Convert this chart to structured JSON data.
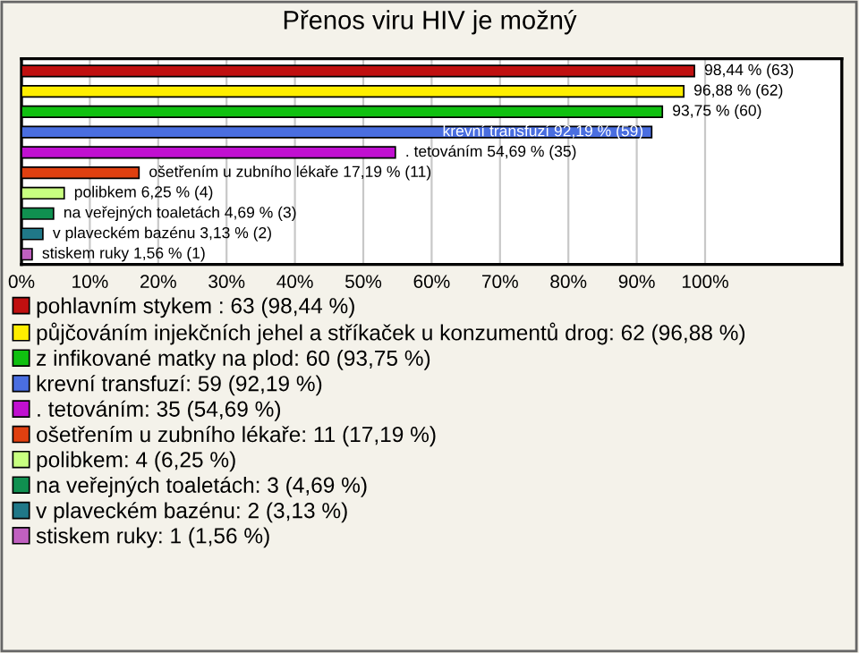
{
  "chart_data": {
    "type": "bar",
    "orientation": "horizontal",
    "title": "Přenos viru HIV je možný",
    "categories": [
      null,
      null,
      null,
      null,
      null,
      null,
      null,
      null,
      null,
      null
    ],
    "series": [
      {
        "name": "pohlavním stykem : 63 (98,44 %)",
        "color": "#c01010",
        "values": [
          98.44,
          null,
          null,
          null,
          null,
          null,
          null,
          null,
          null,
          null
        ],
        "value_labels": [
          "98,44 % (63)",
          null,
          null,
          null,
          null,
          null,
          null,
          null,
          null,
          null
        ]
      },
      {
        "name": "půjčováním injekčních jehel a stříkaček u konzumentů drog: 62 (96,88 %)",
        "color": "#ffee00",
        "values": [
          null,
          96.88,
          null,
          null,
          null,
          null,
          null,
          null,
          null,
          null
        ],
        "value_labels": [
          null,
          "96,88 % (62)",
          null,
          null,
          null,
          null,
          null,
          null,
          null,
          null
        ]
      },
      {
        "name": "z infikované matky na plod: 60 (93,75 %)",
        "color": "#10c010",
        "values": [
          null,
          null,
          93.75,
          null,
          null,
          null,
          null,
          null,
          null,
          null
        ],
        "value_labels": [
          null,
          null,
          "93,75 % (60)",
          null,
          null,
          null,
          null,
          null,
          null,
          null
        ]
      },
      {
        "name": "krevní transfuzí: 59 (92,19 %)",
        "color": "#4a6ee0",
        "values": [
          null,
          null,
          null,
          92.19,
          null,
          null,
          null,
          null,
          null,
          null
        ],
        "value_labels": [
          null,
          null,
          null,
          "krevní transfuzí 92,19 % (59)",
          null,
          null,
          null,
          null,
          null,
          null
        ]
      },
      {
        "name": ". tetováním: 35 (54,69 %)",
        "color": "#c010d0",
        "values": [
          null,
          null,
          null,
          null,
          54.69,
          null,
          null,
          null,
          null,
          null
        ],
        "value_labels": [
          null,
          null,
          null,
          null,
          ". tetováním 54,69 % (35)",
          null,
          null,
          null,
          null,
          null
        ]
      },
      {
        "name": "ošetřením u zubního lékaře: 11 (17,19 %)",
        "color": "#e04010",
        "values": [
          null,
          null,
          null,
          null,
          null,
          17.19,
          null,
          null,
          null,
          null
        ],
        "value_labels": [
          null,
          null,
          null,
          null,
          null,
          "ošetřením u zubního lékaře 17,19 % (11)",
          null,
          null,
          null,
          null
        ]
      },
      {
        "name": "polibkem: 4 (6,25 %)",
        "color": "#c8ff80",
        "values": [
          null,
          null,
          null,
          null,
          null,
          null,
          6.25,
          null,
          null,
          null
        ],
        "value_labels": [
          null,
          null,
          null,
          null,
          null,
          null,
          "polibkem 6,25 % (4)",
          null,
          null,
          null
        ]
      },
      {
        "name": "na veřejných toaletách: 3 (4,69 %)",
        "color": "#109050",
        "values": [
          null,
          null,
          null,
          null,
          null,
          null,
          null,
          4.69,
          null,
          null
        ],
        "value_labels": [
          null,
          null,
          null,
          null,
          null,
          null,
          null,
          "na veřejných toaletách 4,69 % (3)",
          null,
          null
        ]
      },
      {
        "name": "v plaveckém bazénu: 2 (3,13 %)",
        "color": "#207888",
        "values": [
          null,
          null,
          null,
          null,
          null,
          null,
          null,
          null,
          3.13,
          null
        ],
        "value_labels": [
          null,
          null,
          null,
          null,
          null,
          null,
          null,
          null,
          "v plaveckém bazénu 3,13 % (2)",
          null
        ]
      },
      {
        "name": "stiskem ruky: 1 (1,56 %)",
        "color": "#c060c0",
        "values": [
          null,
          null,
          null,
          null,
          null,
          null,
          null,
          null,
          null,
          1.56
        ],
        "value_labels": [
          null,
          null,
          null,
          null,
          null,
          null,
          null,
          null,
          null,
          "stiskem ruky 1,56 % (1)"
        ]
      }
    ],
    "xlim": [
      0,
      120
    ],
    "xticks": [
      {
        "value": 0,
        "label": "0%"
      },
      {
        "value": 10,
        "label": "10%"
      },
      {
        "value": 20,
        "label": "20%"
      },
      {
        "value": 30,
        "label": "30%"
      },
      {
        "value": 40,
        "label": "40%"
      },
      {
        "value": 50,
        "label": "50%"
      },
      {
        "value": 60,
        "label": "60%"
      },
      {
        "value": 70,
        "label": "70%"
      },
      {
        "value": 80,
        "label": "80%"
      },
      {
        "value": 90,
        "label": "90%"
      },
      {
        "value": 100,
        "label": "100%"
      }
    ],
    "grid": "x",
    "legend": "bottom"
  }
}
